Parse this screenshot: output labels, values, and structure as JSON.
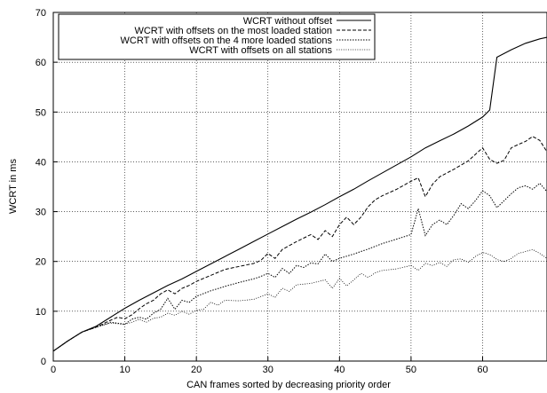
{
  "chart_data": {
    "type": "line",
    "title": "",
    "xlabel": "CAN frames sorted by decreasing priority order",
    "ylabel": "WCRT in ms",
    "xlim": [
      0,
      69
    ],
    "ylim": [
      0,
      70
    ],
    "x_ticks": [
      0,
      10,
      20,
      30,
      40,
      50,
      60
    ],
    "y_ticks": [
      0,
      10,
      20,
      30,
      40,
      50,
      60,
      70
    ],
    "grid": true,
    "legend_position": "top-right",
    "series": [
      {
        "name": "WCRT without offset",
        "dash": "solid",
        "x": [
          0,
          2,
          4,
          6,
          8,
          10,
          12,
          14,
          16,
          18,
          20,
          22,
          24,
          26,
          28,
          30,
          32,
          34,
          36,
          38,
          40,
          42,
          44,
          46,
          48,
          50,
          52,
          54,
          56,
          58,
          60,
          61,
          62,
          64,
          66,
          68,
          69
        ],
        "y": [
          2,
          4,
          5.8,
          7,
          8.8,
          10.6,
          12.2,
          13.7,
          15.2,
          16.5,
          18,
          19.5,
          21,
          22.5,
          24,
          25.5,
          27,
          28.5,
          29.9,
          31.4,
          33,
          34.5,
          36.2,
          37.8,
          39.4,
          41,
          42.8,
          44.2,
          45.6,
          47.2,
          49,
          50.4,
          61,
          62.5,
          63.8,
          64.7,
          65
        ]
      },
      {
        "name": "WCRT with offsets on the most loaded station",
        "dash": "dashed",
        "x": [
          0,
          2,
          4,
          6,
          8,
          9,
          10,
          11,
          12,
          13,
          14,
          15,
          16,
          17,
          18,
          19,
          20,
          22,
          24,
          26,
          28,
          29,
          30,
          31,
          32,
          34,
          36,
          37,
          38,
          39,
          40,
          41,
          42,
          43,
          44,
          45,
          46,
          48,
          50,
          51,
          52,
          53,
          54,
          56,
          58,
          59,
          60,
          61,
          62,
          63,
          64,
          65,
          66,
          67,
          68,
          69
        ],
        "y": [
          2,
          4,
          5.8,
          6.8,
          8.2,
          8.8,
          8.5,
          9.3,
          10.5,
          11.5,
          12.2,
          13.5,
          14.3,
          13.5,
          14.6,
          15.2,
          16,
          17.2,
          18.4,
          19,
          19.6,
          20.2,
          21.6,
          20.6,
          22.4,
          24,
          25.4,
          24.4,
          26.2,
          25,
          27.4,
          28.9,
          27.4,
          28.9,
          31,
          32.4,
          33.2,
          34.5,
          36.1,
          36.8,
          33,
          35.5,
          37,
          38.5,
          40.2,
          41.5,
          42.8,
          40.5,
          39.7,
          40.3,
          42.8,
          43.5,
          44.1,
          45.1,
          44.3,
          42
        ]
      },
      {
        "name": "WCRT with offsets on the 4 more loaded stations",
        "dash": "dotted",
        "x": [
          0,
          2,
          4,
          6,
          8,
          9,
          10,
          11,
          12,
          13,
          14,
          15,
          16,
          17,
          18,
          19,
          20,
          22,
          24,
          26,
          28,
          29,
          30,
          31,
          32,
          33,
          34,
          35,
          36,
          37,
          38,
          39,
          40,
          42,
          44,
          46,
          48,
          50,
          51,
          52,
          53,
          54,
          55,
          56,
          57,
          58,
          59,
          60,
          61,
          62,
          63,
          64,
          65,
          66,
          67,
          68,
          69
        ],
        "y": [
          2,
          4,
          5.8,
          6.8,
          7.8,
          7.6,
          7.4,
          8.4,
          8.8,
          8.4,
          9.6,
          10.4,
          12.6,
          10.4,
          12.2,
          11.8,
          13,
          14.1,
          15,
          15.8,
          16.5,
          17,
          17.6,
          16.8,
          18.6,
          17.6,
          19.2,
          18.8,
          19.7,
          19.5,
          21.5,
          20,
          20.6,
          21.5,
          22.5,
          23.6,
          24.5,
          25.4,
          30.6,
          25.2,
          27.4,
          28.3,
          27.4,
          29.3,
          31.6,
          30.6,
          32.2,
          34.2,
          33.2,
          30.8,
          32.2,
          33.6,
          34.8,
          35.2,
          34.5,
          35.7,
          34
        ]
      },
      {
        "name": "WCRT with offsets on all stations",
        "dash": "finedot",
        "x": [
          0,
          2,
          4,
          6,
          8,
          10,
          11,
          12,
          13,
          14,
          15,
          16,
          17,
          18,
          19,
          20,
          21,
          22,
          23,
          24,
          26,
          28,
          30,
          31,
          32,
          33,
          34,
          36,
          38,
          39,
          40,
          41,
          42,
          43,
          44,
          45,
          46,
          48,
          50,
          51,
          52,
          53,
          54,
          55,
          56,
          57,
          58,
          59,
          60,
          61,
          62,
          63,
          64,
          65,
          66,
          67,
          68,
          69
        ],
        "y": [
          2,
          4,
          5.8,
          6.8,
          7.6,
          7.4,
          7.8,
          8.4,
          7.8,
          8.6,
          8.8,
          9.6,
          9.2,
          10,
          9.4,
          10.2,
          10.4,
          11.8,
          11.2,
          12.2,
          12.1,
          12.4,
          13.5,
          12.8,
          14.6,
          14,
          15.3,
          15.6,
          16.3,
          14.6,
          16.6,
          15.1,
          16.3,
          17.6,
          16.8,
          17.7,
          18.2,
          18.5,
          19.2,
          18.2,
          19.6,
          19.2,
          19.8,
          19,
          20.4,
          20.5,
          19.8,
          21,
          21.8,
          21.4,
          20.4,
          20,
          20.6,
          21.6,
          22,
          22.4,
          21.6,
          20.6
        ]
      }
    ]
  }
}
